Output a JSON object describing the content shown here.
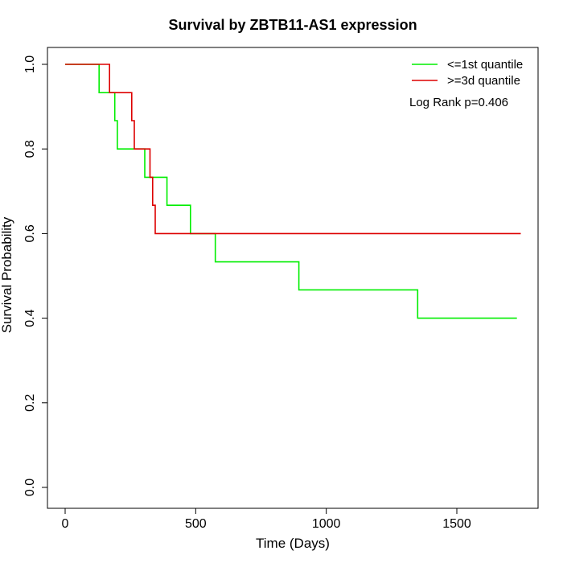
{
  "chart_data": {
    "type": "line",
    "subtype": "kaplan-meier-step",
    "title": "Survival by ZBTB11-AS1 expression",
    "xlabel": "Time (Days)",
    "ylabel": "Survival Probability",
    "xlim": [
      0,
      1800
    ],
    "ylim": [
      0,
      1.05
    ],
    "xticks": [
      0,
      500,
      1000,
      1500
    ],
    "xtick_labels": [
      "0",
      "500",
      "1000",
      "1500"
    ],
    "yticks": [
      0.0,
      0.2,
      0.4,
      0.6,
      0.8,
      1.0
    ],
    "ytick_labels": [
      "0.0",
      "0.2",
      "0.4",
      "0.6",
      "0.8",
      "1.0"
    ],
    "grid": false,
    "legend_position": "top-right",
    "annotation": "Log Rank p=0.406",
    "series": [
      {
        "name": "<=1st quantile",
        "color": "#00ee00",
        "x": [
          0,
          130,
          130,
          190,
          190,
          200,
          200,
          305,
          305,
          390,
          390,
          480,
          480,
          575,
          575,
          895,
          895,
          1350,
          1350,
          1730
        ],
        "y": [
          1.0,
          1.0,
          0.933,
          0.933,
          0.867,
          0.867,
          0.8,
          0.8,
          0.733,
          0.733,
          0.667,
          0.667,
          0.6,
          0.6,
          0.533,
          0.533,
          0.467,
          0.467,
          0.4,
          0.4
        ]
      },
      {
        "name": ">=3d quantile",
        "color": "#dd0000",
        "x": [
          0,
          170,
          170,
          255,
          255,
          265,
          265,
          325,
          325,
          335,
          335,
          345,
          345,
          1745
        ],
        "y": [
          1.0,
          1.0,
          0.933,
          0.933,
          0.867,
          0.867,
          0.8,
          0.8,
          0.733,
          0.733,
          0.667,
          0.667,
          0.6,
          0.6
        ]
      }
    ]
  }
}
